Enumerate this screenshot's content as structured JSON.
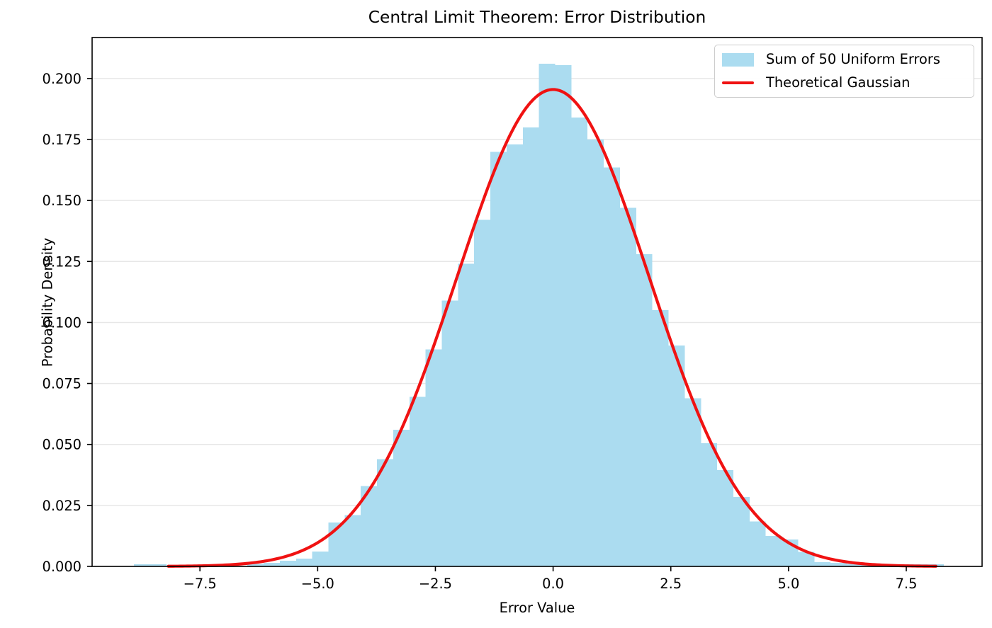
{
  "figure": {
    "title": "Central Limit Theorem: Error Distribution",
    "xlabel": "Error Value",
    "ylabel": "Probability Density"
  },
  "legend": {
    "position": "upper right",
    "items": [
      {
        "label": "Sum of 50 Uniform Errors",
        "swatch": "patch",
        "color": "#abdcf0"
      },
      {
        "label": "Theoretical Gaussian",
        "swatch": "line",
        "color": "#f01212"
      }
    ]
  },
  "colors": {
    "histogram_fill": "#abdcf0",
    "gaussian_line": "#f01212",
    "axis": "#000000",
    "grid": "#e7e7e7",
    "text": "#000000",
    "background": "#ffffff"
  },
  "chart_data": {
    "type": "bar",
    "subtype": "histogram-with-line-overlay",
    "title": "Central Limit Theorem: Error Distribution",
    "xlabel": "Error Value",
    "ylabel": "Probability Density",
    "xlim": [
      -9.79,
      9.11
    ],
    "ylim": [
      0,
      0.2168
    ],
    "grid": "horizontal-only, light gray",
    "legend_position": "upper right",
    "xticks": {
      "values": [
        -7.5,
        -5.0,
        -2.5,
        0.0,
        2.5,
        5.0,
        7.5
      ],
      "labels": [
        "−7.5",
        "−5.0",
        "−2.5",
        "0.0",
        "2.5",
        "5.0",
        "7.5"
      ]
    },
    "yticks": {
      "values": [
        0.0,
        0.025,
        0.05,
        0.075,
        0.1,
        0.125,
        0.15,
        0.175,
        0.2
      ],
      "labels": [
        "0.000",
        "0.025",
        "0.050",
        "0.075",
        "0.100",
        "0.125",
        "0.150",
        "0.175",
        "0.200"
      ]
    },
    "series": [
      {
        "name": "Sum of 50 Uniform Errors",
        "type": "histogram",
        "bin_start": -8.9,
        "bin_width": 0.344,
        "n_bins": 50,
        "densities": [
          0.0008,
          0.0008,
          0,
          0,
          0,
          0,
          0,
          0.001,
          0.0015,
          0.0023,
          0.0032,
          0.0061,
          0.018,
          0.021,
          0.033,
          0.044,
          0.056,
          0.0695,
          0.089,
          0.109,
          0.124,
          0.142,
          0.17,
          0.173,
          0.18,
          0.206,
          0.2055,
          0.184,
          0.175,
          0.1635,
          0.147,
          0.128,
          0.105,
          0.0905,
          0.069,
          0.0505,
          0.0395,
          0.0285,
          0.0185,
          0.0125,
          0.011,
          0.006,
          0.0018,
          0.0015,
          0.001,
          0.0008,
          0.0008,
          0.0008,
          0.0008,
          0.0008
        ]
      },
      {
        "name": "Theoretical Gaussian",
        "type": "line",
        "mean": 0,
        "sigma": 2.041,
        "peak_density": 0.1955,
        "x_range": [
          -8.17,
          8.17
        ],
        "linewidth": 4.2
      }
    ]
  }
}
